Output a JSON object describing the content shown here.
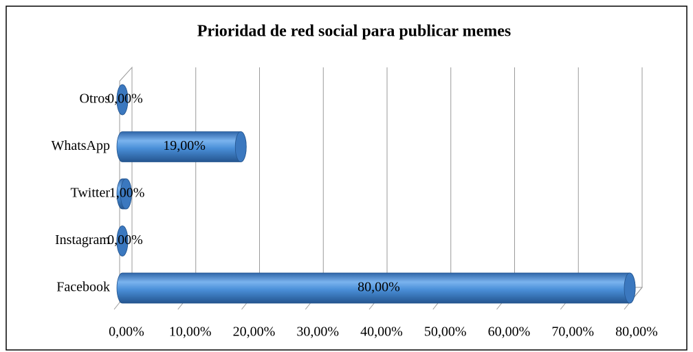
{
  "chart_data": {
    "type": "bar3d",
    "title": "Prioridad  de red social para publicar memes",
    "categories": [
      "Facebook",
      "Instagram",
      "Twitter",
      "WhatsApp",
      "Otros"
    ],
    "values": [
      80,
      0,
      1,
      19,
      0
    ],
    "value_labels": [
      "80,00%",
      "0,00%",
      "1,00%",
      "19,00%",
      "0,00%"
    ],
    "color": "#4a8fd8",
    "xlim": [
      0,
      80
    ],
    "xticks": [
      {
        "value": 0,
        "label": "0,00%"
      },
      {
        "value": 10,
        "label": "10,00%"
      },
      {
        "value": 20,
        "label": "20,00%"
      },
      {
        "value": 30,
        "label": "30,00%"
      },
      {
        "value": 40,
        "label": "40,00%"
      },
      {
        "value": 50,
        "label": "50,00%"
      },
      {
        "value": 60,
        "label": "60,00%"
      },
      {
        "value": 70,
        "label": "70,00%"
      },
      {
        "value": 80,
        "label": "80,00%"
      }
    ],
    "grid": true
  }
}
